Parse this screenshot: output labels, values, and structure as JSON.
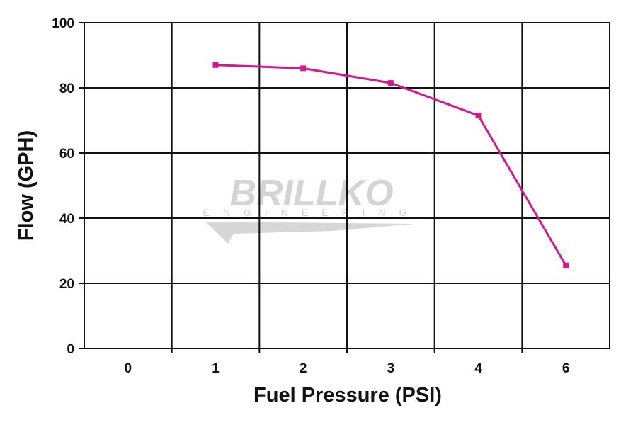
{
  "chart_data": {
    "type": "line",
    "title": "",
    "xlabel": "Fuel Pressure (PSI)",
    "ylabel": "Flow (GPH)",
    "categories": [
      "0",
      "1",
      "2",
      "3",
      "4",
      "6"
    ],
    "ylim": [
      0,
      100
    ],
    "yticks": [
      "0",
      "20",
      "40",
      "60",
      "80",
      "100"
    ],
    "grid": true,
    "series": [
      {
        "x": [
          "1",
          "2",
          "3",
          "4",
          "6"
        ],
        "values": [
          87,
          86,
          81.5,
          71.5,
          25.5
        ],
        "color": "#d6158f"
      }
    ]
  },
  "watermark": {
    "brand": "BRILLKO",
    "sub": "ENGINEERING",
    "color": "#d4d4d4"
  }
}
